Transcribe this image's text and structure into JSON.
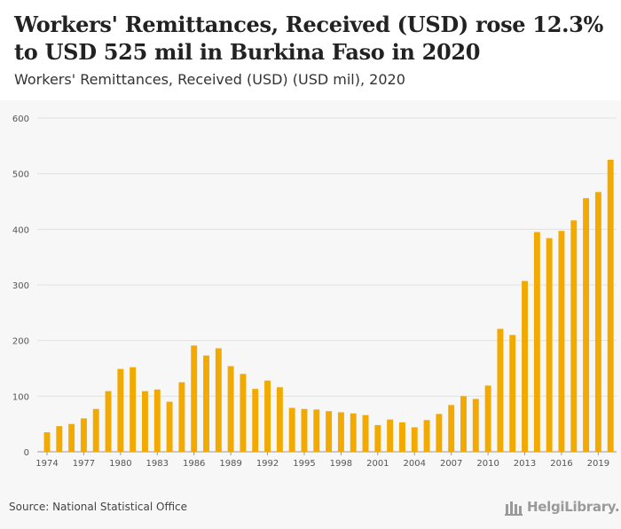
{
  "header": {
    "title": "Workers' Remittances, Received (USD) rose 12.3% to USD 525 mil in Burkina Faso in 2020",
    "subtitle": "Workers' Remittances, Received (USD) (USD mil), 2020"
  },
  "footer": {
    "source": "Source: National Statistical Office",
    "logo_text": "HelgiLibrary."
  },
  "colors": {
    "bar": "#f2a900",
    "grid": "#e2e2e2",
    "background": "#f7f7f7"
  },
  "chart_data": {
    "type": "bar",
    "title": "Workers' Remittances, Received (USD) rose 12.3% to USD 525 mil in Burkina Faso in 2020",
    "subtitle": "Workers' Remittances, Received (USD) (USD mil), 2020",
    "xlabel": "",
    "ylabel": "",
    "ylim": [
      0,
      600
    ],
    "yticks": [
      0,
      100,
      200,
      300,
      400,
      500,
      600
    ],
    "grid": true,
    "categories": [
      "1974",
      "1975",
      "1976",
      "1977",
      "1978",
      "1979",
      "1980",
      "1981",
      "1982",
      "1983",
      "1984",
      "1985",
      "1986",
      "1987",
      "1988",
      "1989",
      "1990",
      "1991",
      "1992",
      "1993",
      "1994",
      "1995",
      "1996",
      "1997",
      "1998",
      "1999",
      "2000",
      "2001",
      "2002",
      "2003",
      "2004",
      "2005",
      "2006",
      "2007",
      "2008",
      "2009",
      "2010",
      "2011",
      "2012",
      "2013",
      "2014",
      "2015",
      "2016",
      "2017",
      "2018",
      "2019",
      "2020"
    ],
    "xtick_labels": [
      "1974",
      "1977",
      "1980",
      "1983",
      "1986",
      "1989",
      "1992",
      "1995",
      "1998",
      "2001",
      "2004",
      "2007",
      "2010",
      "2013",
      "2016",
      "2019"
    ],
    "values": [
      35,
      46,
      50,
      60,
      77,
      109,
      149,
      152,
      109,
      112,
      90,
      125,
      191,
      173,
      186,
      154,
      140,
      113,
      128,
      116,
      79,
      77,
      76,
      73,
      71,
      69,
      66,
      48,
      58,
      53,
      44,
      57,
      68,
      84,
      100,
      95,
      119,
      221,
      210,
      307,
      395,
      384,
      397,
      416,
      456,
      467,
      525
    ]
  }
}
